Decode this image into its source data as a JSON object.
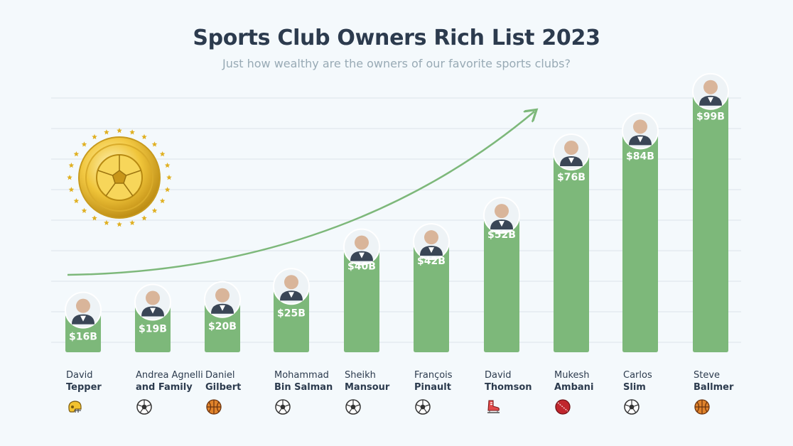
{
  "title": "Sports Club Owners Rich List 2023",
  "subtitle": "Just how wealthy are the owners of our favorite sports clubs?",
  "chart_data": {
    "type": "bar",
    "title": "Sports Club Owners Rich List 2023",
    "subtitle": "Just how wealthy are the owners of our favorite sports clubs?",
    "xlabel": "",
    "ylabel": "",
    "ylim": [
      0,
      110
    ],
    "grid": true,
    "legend": "none",
    "bar_color": "#7db87a",
    "categories": [
      "David Tepper",
      "Andrea Agnelli and Family",
      "Daniel Gilbert",
      "Mohammad Bin Salman",
      "Sheikh Mansour",
      "François Pinault",
      "David Thomson",
      "Mukesh Ambani",
      "Carlos Slim",
      "Steve Ballmer"
    ],
    "values": [
      16,
      19,
      20,
      25,
      40,
      42,
      52,
      76,
      84,
      99
    ],
    "data_labels": [
      "$16B",
      "$19B",
      "$20B",
      "$25B",
      "$40B",
      "$42B",
      "$52B",
      "$76B",
      "$84B",
      "$99B"
    ],
    "unit": "billion USD"
  },
  "owners": [
    {
      "first": "David",
      "last": "Tepper",
      "sport": "american-football-helmet-icon"
    },
    {
      "first": "Andrea Agnelli",
      "last": "and Family",
      "sport": "soccer-ball-icon"
    },
    {
      "first": "Daniel",
      "last": "Gilbert",
      "sport": "basketball-icon"
    },
    {
      "first": "Mohammad",
      "last": "Bin Salman",
      "sport": "soccer-ball-icon"
    },
    {
      "first": "Sheikh",
      "last": "Mansour",
      "sport": "soccer-ball-icon"
    },
    {
      "first": "François",
      "last": "Pinault",
      "sport": "soccer-ball-icon"
    },
    {
      "first": "David",
      "last": "Thomson",
      "sport": "hockey-skate-icon"
    },
    {
      "first": "Mukesh",
      "last": "Ambani",
      "sport": "cricket-ball-icon"
    },
    {
      "first": "Carlos",
      "last": "Slim",
      "sport": "soccer-ball-icon"
    },
    {
      "first": "Steve",
      "last": "Ballmer",
      "sport": "basketball-icon"
    }
  ],
  "colors": {
    "bar": "#7db87a",
    "arrow": "#7db87a",
    "title": "#2c3b4e",
    "subtitle": "#98aab5",
    "grid": "#dde4ea",
    "background": "#f4f9fc",
    "coin": "#e0b022"
  }
}
